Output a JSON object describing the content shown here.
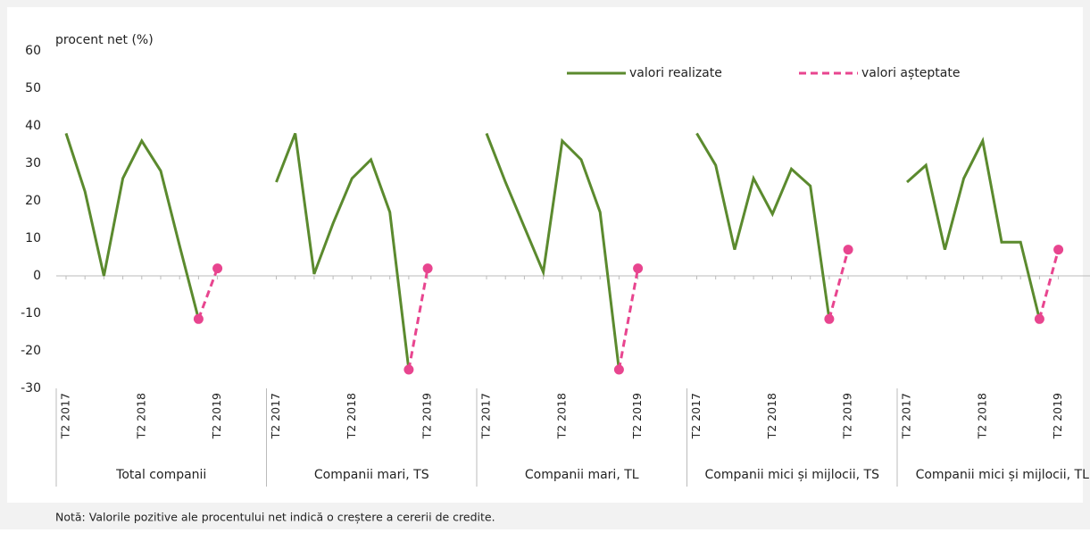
{
  "chart_data": {
    "type": "line",
    "y_label": "procent net (%)",
    "note": "Notă: Valorile pozitive ale procentului net indică o creștere a cererii de credite.",
    "groups": [
      "Total companii",
      "Companii mari, TS",
      "Companii mari, TL",
      "Companii mici și mijlocii, TS",
      "Companii mici și mijlocii, TL"
    ],
    "categories": [
      "T2 2017",
      null,
      null,
      null,
      "T2 2018",
      null,
      null,
      null,
      "T2 2019",
      "T2 2017",
      null,
      null,
      null,
      "T2 2018",
      null,
      null,
      null,
      "T2 2019",
      "T2 2017",
      null,
      null,
      null,
      "T2 2018",
      null,
      null,
      null,
      "T2 2019",
      "T2 2017",
      null,
      null,
      null,
      "T2 2018",
      null,
      null,
      null,
      "T2 2019",
      "T2 2017",
      null,
      null,
      null,
      "T2 2018",
      null,
      null,
      null,
      "T2 2019"
    ],
    "series": [
      {
        "name": "valori realizate",
        "color": "#5b8a2e",
        "dashed": false,
        "markers": false,
        "values": [
          38,
          22.5,
          0,
          26,
          36,
          28,
          8,
          -11.5,
          null,
          25,
          38,
          0.5,
          14,
          26,
          31,
          17,
          -25,
          null,
          38,
          25,
          13,
          1,
          36,
          31,
          17,
          -25,
          null,
          38,
          29.5,
          7,
          26,
          16.5,
          28.5,
          24,
          -11.5,
          null,
          25,
          29.5,
          7,
          26,
          36,
          9,
          9,
          -11.5,
          null
        ]
      },
      {
        "name": "valori așteptate",
        "color": "#e8458f",
        "dashed": true,
        "markers": true,
        "values": [
          null,
          null,
          null,
          null,
          null,
          null,
          null,
          -11.5,
          2,
          null,
          null,
          null,
          null,
          null,
          null,
          null,
          -25,
          2,
          null,
          null,
          null,
          null,
          null,
          null,
          null,
          -25,
          2,
          null,
          null,
          null,
          null,
          null,
          null,
          null,
          -11.5,
          7,
          null,
          null,
          null,
          null,
          null,
          null,
          null,
          -11.5,
          7
        ]
      }
    ],
    "ylim": [
      -30,
      60
    ],
    "yticks": [
      -30,
      -20,
      -10,
      0,
      10,
      20,
      30,
      40,
      50,
      60
    ]
  }
}
